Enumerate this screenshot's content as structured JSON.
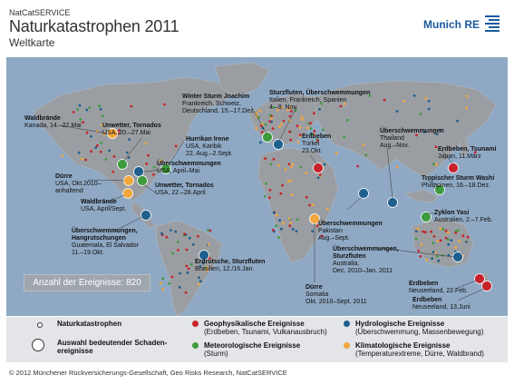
{
  "header": {
    "brand_small": "NatCatSERVICE",
    "title": "Naturkatastrophen 2011",
    "subtitle": "Weltkarte",
    "logo_text": "Munich RE"
  },
  "count_label": "Anzahl der Ereignisse: 820",
  "colors": {
    "ocean": "#8fa9c4",
    "land": "#9a9ea3",
    "geophysical": "#c8232b",
    "meteorological": "#3e9b3f",
    "hydrological": "#1f5f8e",
    "climatological": "#f2a63b"
  },
  "events": [
    {
      "title": "Waldbrände",
      "lines": [
        "Kanada, 14.–22.Mai"
      ]
    },
    {
      "title": "Unwetter, Tornados",
      "lines": [
        "USA, 20.–27.Mai"
      ]
    },
    {
      "title": "Hurrikan Irene",
      "lines": [
        "USA, Karibik",
        "22. Aug.–2.Sept."
      ]
    },
    {
      "title": "Überschwemmungen",
      "lines": [
        "USA, April–Mai"
      ]
    },
    {
      "title": "Dürre",
      "lines": [
        "USA, Okt.2010–",
        "anhaltend"
      ]
    },
    {
      "title": "Unwetter, Tornados",
      "lines": [
        "USA, 22.–28.April"
      ]
    },
    {
      "title": "Waldbrände",
      "lines": [
        "USA, April/Sept."
      ]
    },
    {
      "title": "Überschwemmungen,",
      "lines": [
        "Hangrutschungen",
        "Guatemala, El Salvador",
        "11.–19.Okt."
      ]
    },
    {
      "title": "Erdrutsche, Sturzfluten",
      "lines": [
        "Brasilien, 12./16.Jan."
      ]
    },
    {
      "title": "Winter Sturm Joachim",
      "lines": [
        "Frankreich, Schweiz,",
        "Deutschland, 15.–17.Dez."
      ]
    },
    {
      "title": "Sturzfluten, Überschwemmungen",
      "lines": [
        "Italien, Frankreich, Spanien",
        "4.–9. Nov."
      ]
    },
    {
      "title": "Erdbeben",
      "lines": [
        "Türkei",
        "23.Okt."
      ]
    },
    {
      "title": "Überschwemmungen",
      "lines": [
        "Thailand",
        "Aug.–Nov."
      ]
    },
    {
      "title": "Erdbeben, Tsunami",
      "lines": [
        "Japan, 11.März"
      ]
    },
    {
      "title": "Tropischer Sturm Washi",
      "lines": [
        "Philippinen, 16.–18.Dez."
      ]
    },
    {
      "title": "Zyklon Yasi",
      "lines": [
        "Australien, 2.–7.Feb."
      ]
    },
    {
      "title": "Überschwemmungen",
      "lines": [
        "Pakistan",
        "Aug.–Sept."
      ]
    },
    {
      "title": "Überschwemmungen,",
      "lines": [
        "Sturzfluten",
        "Australia,",
        "Dec. 2010–Jan. 2011"
      ]
    },
    {
      "title": "Dürre",
      "lines": [
        "Somalia",
        "Okt. 2010–Sept. 2011"
      ]
    },
    {
      "title": "Erdbeben",
      "lines": [
        "Neuseeland, 22.Feb."
      ]
    },
    {
      "title": "Erdbeben",
      "lines": [
        "Neuseeland, 13.Juni"
      ]
    }
  ],
  "legend": {
    "natcat": "Naturkatastrophen",
    "selection_1": "Auswahl bedeutender Schaden-",
    "selection_2": "ereignisse",
    "geo_title": "Geophysikalische Ereignisse",
    "geo_sub": "(Erdbeben, Tsunami, Vulkanausbruch)",
    "met_title": "Meteorologische Ereignisse",
    "met_sub": "(Sturm)",
    "hyd_title": "Hydrologische Ereignisse",
    "hyd_sub": "(Überschwemmung, Massenbewegung)",
    "cli_title": "Klimatologische Ereignisse",
    "cli_sub": "(Temperaturextreme, Dürre, Waldbrand)"
  },
  "footer": "© 2012 Münchener Rückversicherungs-Gesellschaft, Geo Risks Research, NatCatSERVICE"
}
